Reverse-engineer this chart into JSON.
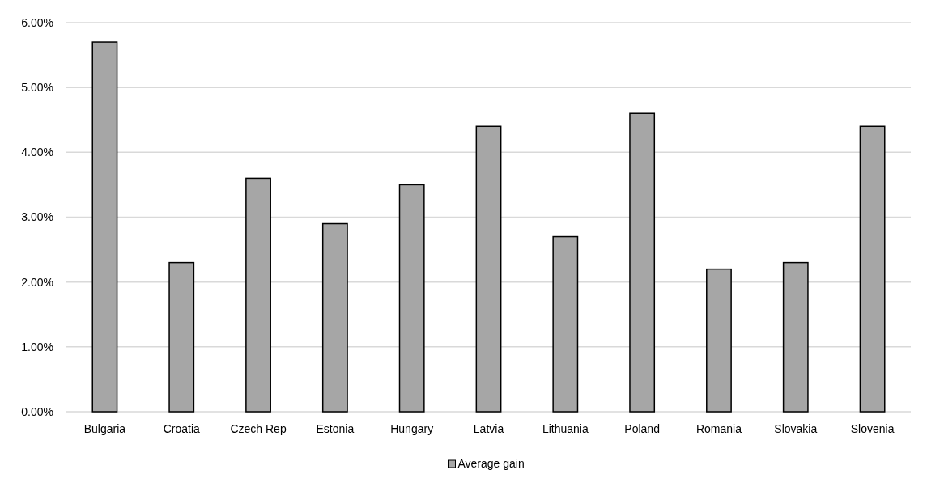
{
  "chart_data": {
    "type": "bar",
    "categories": [
      "Bulgaria",
      "Croatia",
      "Czech Rep",
      "Estonia",
      "Hungary",
      "Latvia",
      "Lithuania",
      "Poland",
      "Romania",
      "Slovakia",
      "Slovenia"
    ],
    "series": [
      {
        "name": "Average gain",
        "color": "#a6a6a6",
        "values": [
          5.7,
          2.3,
          3.6,
          2.9,
          3.5,
          4.4,
          2.7,
          4.6,
          2.2,
          2.3,
          4.4
        ]
      }
    ],
    "ylim": [
      0,
      6
    ],
    "yticks": [
      {
        "value": 0,
        "label": "0.00%"
      },
      {
        "value": 1,
        "label": "1.00%"
      },
      {
        "value": 2,
        "label": "2.00%"
      },
      {
        "value": 3,
        "label": "3.00%"
      },
      {
        "value": 4,
        "label": "4.00%"
      },
      {
        "value": 5,
        "label": "5.00%"
      },
      {
        "value": 6,
        "label": "6.00%"
      }
    ],
    "grid": "y",
    "legend": "bottom"
  }
}
